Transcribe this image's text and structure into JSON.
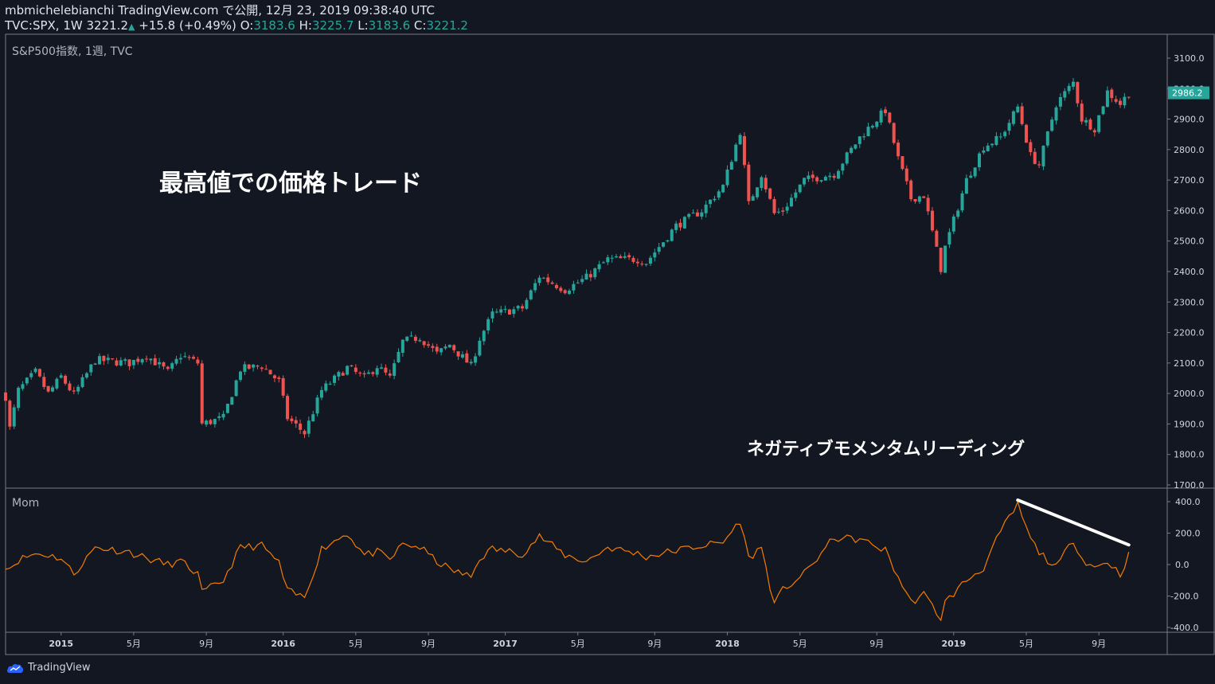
{
  "header": {
    "line1": "mbmichelebianchi TradingView.com で公開, 12月 23, 2019 09:38:40 UTC",
    "symbol": "TVC:SPX, 1W",
    "last": "3221.2",
    "up_arrow": "▲",
    "change": "+15.8 (+0.49%)",
    "o_label": "O:",
    "o_value": "3183.6",
    "h_label": "H:",
    "h_value": "3225.7",
    "l_label": "L:",
    "l_value": "3183.6",
    "c_label": "C:",
    "c_value": "3221.2"
  },
  "pane_label": "S&P500指数, 1週, TVC",
  "mom_label": "Mom",
  "annotations": {
    "main": "最高値での価格トレード",
    "momentum": "ネガティブモメンタムリーディング"
  },
  "footer": {
    "brand": "TradingView",
    "logo_icon": "tradingview-logo-icon"
  },
  "colors": {
    "background": "#131722",
    "up": "#26a69a",
    "down": "#ef5350",
    "momentum_line": "#f57c00",
    "trendline": "#ffffff",
    "axis_border": "#787b86",
    "price_badge": "#26a69a"
  },
  "chart_data": [
    {
      "type": "candlestick",
      "title": "S&P500指数, 1週, TVC",
      "interval": "1W",
      "ylim": [
        1700,
        3100
      ],
      "yticks": [
        "3100.0",
        "3000.0",
        "2900.0",
        "2800.0",
        "2700.0",
        "2600.0",
        "2500.0",
        "2400.0",
        "2300.0",
        "2200.0",
        "2100.0",
        "2000.0",
        "1900.0",
        "1800.0",
        "1700.0"
      ],
      "last_price_label": "2986.2",
      "last_price_value": 2986.2,
      "xlim": [
        "2014-10-06",
        "2019-12-23"
      ],
      "xticks": [
        {
          "date": "2015-01-05",
          "label": "2015",
          "bold": true
        },
        {
          "date": "2015-05-04",
          "label": "5月"
        },
        {
          "date": "2015-08-31",
          "label": "9月"
        },
        {
          "date": "2016-01-04",
          "label": "2016",
          "bold": true
        },
        {
          "date": "2016-05-02",
          "label": "5月"
        },
        {
          "date": "2016-08-29",
          "label": "9月"
        },
        {
          "date": "2017-01-02",
          "label": "2017",
          "bold": true
        },
        {
          "date": "2017-05-01",
          "label": "5月"
        },
        {
          "date": "2017-09-04",
          "label": "9月"
        },
        {
          "date": "2018-01-01",
          "label": "2018",
          "bold": true
        },
        {
          "date": "2018-04-30",
          "label": "5月"
        },
        {
          "date": "2018-09-03",
          "label": "9月"
        },
        {
          "date": "2019-01-07",
          "label": "2019",
          "bold": true
        },
        {
          "date": "2019-05-06",
          "label": "5月"
        },
        {
          "date": "2019-09-02",
          "label": "9月"
        }
      ],
      "close_points": [
        [
          "2014-10-06",
          1990
        ],
        [
          "2014-10-13",
          1885
        ],
        [
          "2014-10-27",
          2010
        ],
        [
          "2014-11-24",
          2070
        ],
        [
          "2014-12-15",
          2000
        ],
        [
          "2015-01-05",
          2055
        ],
        [
          "2015-01-26",
          1995
        ],
        [
          "2015-03-02",
          2110
        ],
        [
          "2015-04-27",
          2100
        ],
        [
          "2015-05-25",
          2125
        ],
        [
          "2015-06-29",
          2070
        ],
        [
          "2015-07-20",
          2125
        ],
        [
          "2015-08-17",
          2100
        ],
        [
          "2015-08-24",
          1900
        ],
        [
          "2015-09-28",
          1920
        ],
        [
          "2015-10-26",
          2080
        ],
        [
          "2015-11-30",
          2090
        ],
        [
          "2015-12-28",
          2040
        ],
        [
          "2016-01-11",
          1920
        ],
        [
          "2016-02-08",
          1870
        ],
        [
          "2016-03-07",
          2010
        ],
        [
          "2016-04-18",
          2085
        ],
        [
          "2016-05-16",
          2050
        ],
        [
          "2016-06-06",
          2090
        ],
        [
          "2016-06-27",
          2050
        ],
        [
          "2016-07-18",
          2170
        ],
        [
          "2016-08-15",
          2185
        ],
        [
          "2016-09-12",
          2130
        ],
        [
          "2016-10-03",
          2160
        ],
        [
          "2016-11-07",
          2090
        ],
        [
          "2016-11-21",
          2180
        ],
        [
          "2016-12-12",
          2260
        ],
        [
          "2017-01-30",
          2280
        ],
        [
          "2017-02-27",
          2385
        ],
        [
          "2017-04-10",
          2340
        ],
        [
          "2017-05-15",
          2380
        ],
        [
          "2017-06-19",
          2440
        ],
        [
          "2017-08-07",
          2440
        ],
        [
          "2017-08-21",
          2430
        ],
        [
          "2017-10-09",
          2550
        ],
        [
          "2017-11-20",
          2600
        ],
        [
          "2017-12-25",
          2680
        ],
        [
          "2018-01-22",
          2860
        ],
        [
          "2018-02-05",
          2620
        ],
        [
          "2018-02-26",
          2720
        ],
        [
          "2018-03-19",
          2590
        ],
        [
          "2018-04-02",
          2600
        ],
        [
          "2018-05-07",
          2700
        ],
        [
          "2018-06-25",
          2720
        ],
        [
          "2018-08-06",
          2840
        ],
        [
          "2018-09-17",
          2930
        ],
        [
          "2018-10-08",
          2770
        ],
        [
          "2018-10-29",
          2640
        ],
        [
          "2018-11-19",
          2650
        ],
        [
          "2018-12-17",
          2410
        ],
        [
          "2018-12-24",
          2480
        ],
        [
          "2019-01-28",
          2700
        ],
        [
          "2019-02-25",
          2810
        ],
        [
          "2019-03-25",
          2840
        ],
        [
          "2019-04-22",
          2940
        ],
        [
          "2019-05-13",
          2780
        ],
        [
          "2019-05-27",
          2750
        ],
        [
          "2019-06-24",
          2950
        ],
        [
          "2019-07-22",
          3020
        ],
        [
          "2019-08-05",
          2900
        ],
        [
          "2019-08-26",
          2870
        ],
        [
          "2019-09-16",
          2990
        ],
        [
          "2019-10-07",
          2950
        ],
        [
          "2019-10-21",
          2986.2
        ]
      ]
    },
    {
      "type": "line",
      "title": "Mom",
      "ylim": [
        -420,
        430
      ],
      "yticks": [
        "400.0",
        "200.0",
        "0.0",
        "-200.0",
        "-400.0"
      ],
      "trendline": [
        [
          "2019-04-22",
          410
        ],
        [
          "2019-10-21",
          125
        ]
      ],
      "points": [
        [
          "2014-10-06",
          -5
        ],
        [
          "2014-10-13",
          -20
        ],
        [
          "2014-10-27",
          30
        ],
        [
          "2014-11-24",
          70
        ],
        [
          "2014-12-15",
          60
        ],
        [
          "2015-01-05",
          40
        ],
        [
          "2015-01-26",
          -60
        ],
        [
          "2015-03-02",
          110
        ],
        [
          "2015-04-27",
          80
        ],
        [
          "2015-05-25",
          40
        ],
        [
          "2015-06-29",
          0
        ],
        [
          "2015-07-20",
          20
        ],
        [
          "2015-08-17",
          -60
        ],
        [
          "2015-08-24",
          -180
        ],
        [
          "2015-09-28",
          -100
        ],
        [
          "2015-10-26",
          110
        ],
        [
          "2015-11-30",
          120
        ],
        [
          "2015-12-28",
          10
        ],
        [
          "2016-01-11",
          -170
        ],
        [
          "2016-02-08",
          -210
        ],
        [
          "2016-03-07",
          100
        ],
        [
          "2016-04-18",
          200
        ],
        [
          "2016-05-16",
          60
        ],
        [
          "2016-06-06",
          80
        ],
        [
          "2016-06-27",
          30
        ],
        [
          "2016-07-18",
          130
        ],
        [
          "2016-08-15",
          110
        ],
        [
          "2016-09-12",
          20
        ],
        [
          "2016-10-03",
          -30
        ],
        [
          "2016-11-07",
          -80
        ],
        [
          "2016-11-21",
          40
        ],
        [
          "2016-12-12",
          100
        ],
        [
          "2017-01-30",
          70
        ],
        [
          "2017-02-27",
          180
        ],
        [
          "2017-04-10",
          60
        ],
        [
          "2017-05-15",
          20
        ],
        [
          "2017-06-19",
          110
        ],
        [
          "2017-08-07",
          70
        ],
        [
          "2017-08-21",
          50
        ],
        [
          "2017-10-09",
          90
        ],
        [
          "2017-11-20",
          120
        ],
        [
          "2017-12-25",
          140
        ],
        [
          "2018-01-22",
          280
        ],
        [
          "2018-02-05",
          40
        ],
        [
          "2018-02-26",
          110
        ],
        [
          "2018-03-19",
          -260
        ],
        [
          "2018-04-02",
          -160
        ],
        [
          "2018-05-07",
          -60
        ],
        [
          "2018-06-25",
          170
        ],
        [
          "2018-08-06",
          160
        ],
        [
          "2018-09-17",
          90
        ],
        [
          "2018-10-08",
          -80
        ],
        [
          "2018-10-29",
          -240
        ],
        [
          "2018-11-19",
          -190
        ],
        [
          "2018-12-17",
          -340
        ],
        [
          "2018-12-24",
          -240
        ],
        [
          "2019-01-28",
          -100
        ],
        [
          "2019-02-25",
          -20
        ],
        [
          "2019-03-25",
          210
        ],
        [
          "2019-04-22",
          380
        ],
        [
          "2019-05-13",
          160
        ],
        [
          "2019-05-27",
          80
        ],
        [
          "2019-06-24",
          -20
        ],
        [
          "2019-07-22",
          160
        ],
        [
          "2019-08-05",
          40
        ],
        [
          "2019-08-26",
          -20
        ],
        [
          "2019-09-16",
          20
        ],
        [
          "2019-10-07",
          -60
        ],
        [
          "2019-10-21",
          60
        ]
      ]
    }
  ]
}
